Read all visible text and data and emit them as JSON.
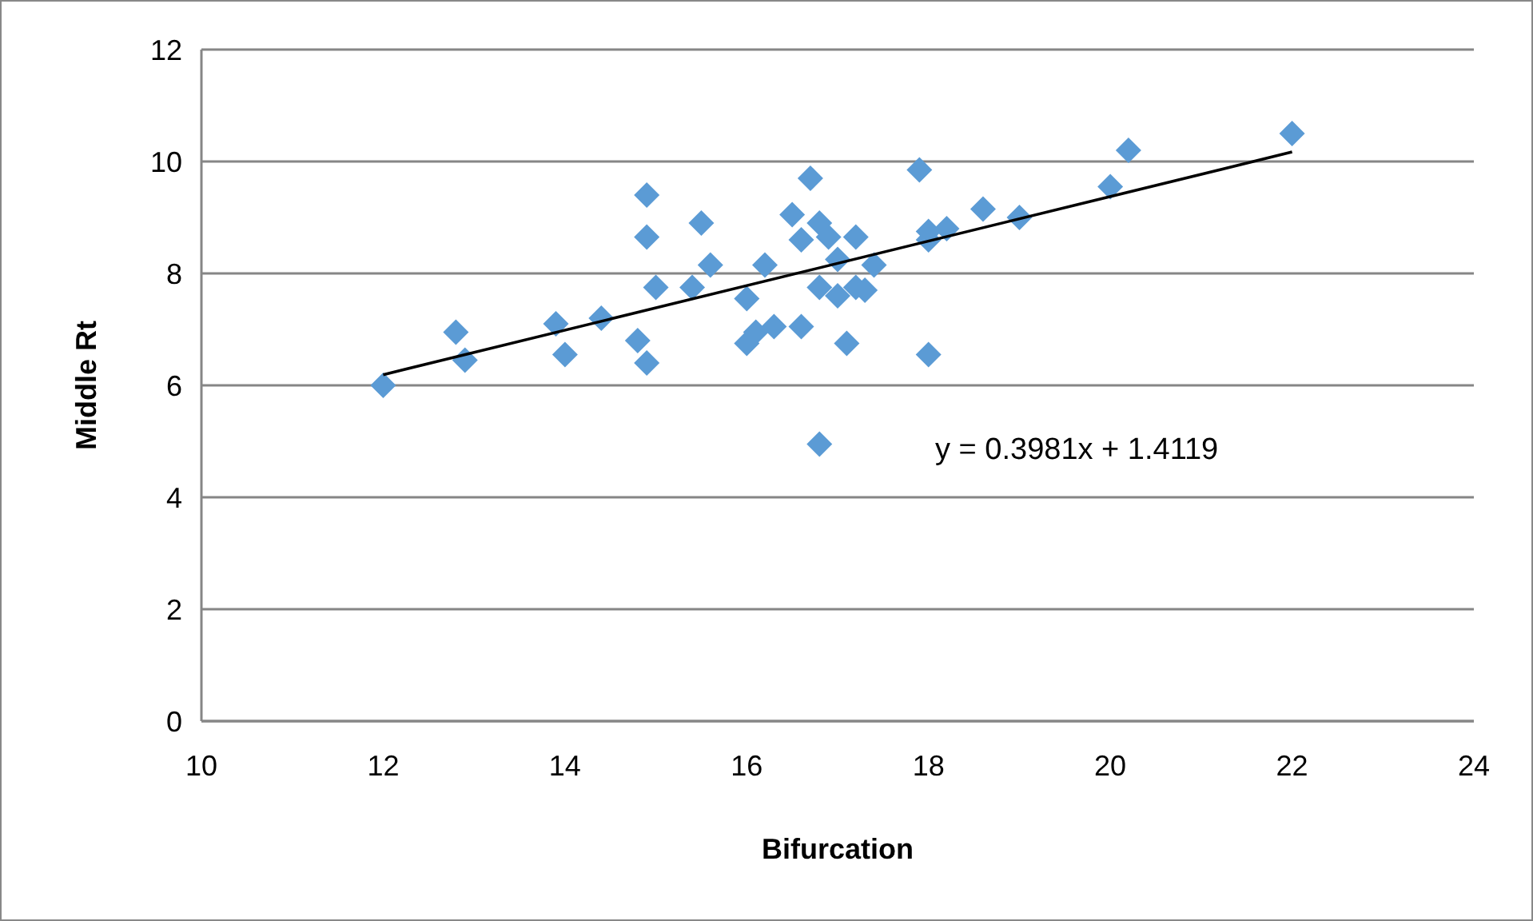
{
  "chart_data": {
    "type": "scatter",
    "xlabel": "Bifurcation",
    "ylabel": "Middle Rt",
    "xlim": [
      10,
      24
    ],
    "xticks": [
      10,
      12,
      14,
      16,
      18,
      20,
      22,
      24
    ],
    "ylim": [
      0,
      12
    ],
    "yticks": [
      0,
      2,
      4,
      6,
      8,
      10,
      12
    ],
    "grid": "y",
    "marker": "diamond",
    "annotations": [
      "y = 0.3981x + 1.4119"
    ],
    "series": [
      {
        "color": "#5b9bd5",
        "x": [
          12.0,
          12.8,
          12.9,
          13.9,
          14.0,
          14.4,
          14.8,
          14.9,
          14.9,
          14.9,
          15.0,
          15.4,
          15.5,
          15.6,
          16.0,
          16.0,
          16.1,
          16.2,
          16.3,
          16.5,
          16.6,
          16.6,
          16.7,
          16.8,
          16.8,
          16.8,
          16.9,
          17.0,
          17.0,
          17.1,
          17.2,
          17.2,
          17.3,
          17.4,
          17.9,
          18.0,
          18.0,
          18.0,
          18.2,
          18.6,
          19.0,
          20.0,
          20.2,
          22.0
        ],
        "values": [
          6.0,
          6.95,
          6.45,
          7.1,
          6.55,
          7.2,
          6.8,
          9.4,
          8.65,
          6.4,
          7.75,
          7.75,
          8.9,
          8.15,
          7.55,
          6.75,
          6.95,
          8.15,
          7.05,
          9.05,
          8.6,
          7.05,
          9.7,
          8.9,
          7.75,
          4.95,
          8.65,
          8.25,
          7.6,
          6.75,
          8.65,
          7.75,
          7.7,
          8.15,
          9.85,
          8.75,
          8.6,
          6.55,
          8.8,
          9.15,
          9.0,
          9.55,
          10.2,
          10.5
        ]
      },
      {
        "type": "line",
        "color": "#000000",
        "line_style": "solid",
        "marker": "none",
        "x": [
          12,
          22
        ],
        "values": [
          6.19,
          10.17
        ]
      }
    ]
  }
}
